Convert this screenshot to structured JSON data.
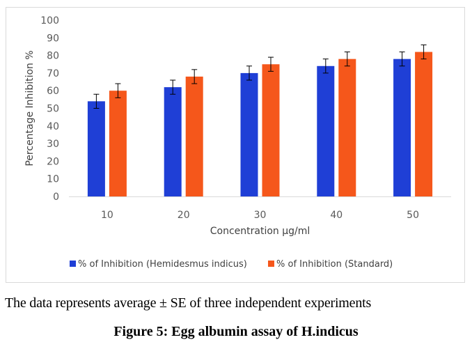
{
  "chart_data": {
    "type": "bar",
    "title": "",
    "xlabel": "Concentration μg/ml",
    "ylabel": "Percentage Inhibition %",
    "categories": [
      "10",
      "20",
      "30",
      "40",
      "50"
    ],
    "ylim": [
      0,
      100
    ],
    "yticks": [
      "0",
      "10",
      "20",
      "30",
      "40",
      "50",
      "60",
      "70",
      "80",
      "90",
      "100"
    ],
    "grid": false,
    "legend_position": "bottom",
    "series": [
      {
        "name": "% of Inhibition (Hemidesmus indicus)",
        "color": "#1f3fd6",
        "values": [
          54,
          62,
          70,
          74,
          78
        ],
        "errors": [
          4,
          4,
          4,
          4,
          4
        ]
      },
      {
        "name": "% of Inhibition (Standard)",
        "color": "#f5571b",
        "values": [
          60,
          68,
          75,
          78,
          82
        ],
        "errors": [
          4,
          4,
          4,
          4,
          4
        ]
      }
    ]
  },
  "footnote": "The data represents average ± SE of three independent experiments",
  "caption": "Figure 5: Egg albumin assay of H.indicus"
}
